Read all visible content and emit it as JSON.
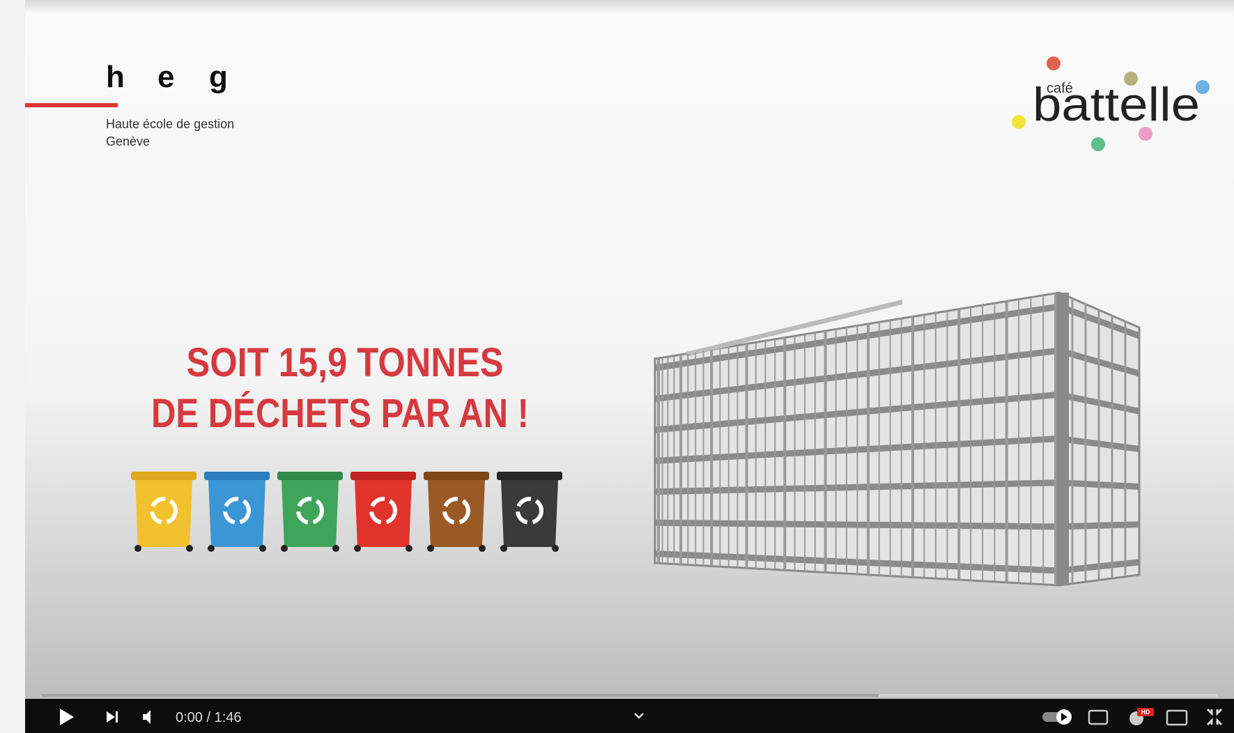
{
  "logo_left": {
    "letters": [
      "h",
      "e",
      "g"
    ],
    "line1": "Haute école de gestion",
    "line2": "Genève"
  },
  "logo_right": {
    "small": "café",
    "name": "battelle"
  },
  "headline": {
    "line1": "SOIT 15,9 TONNES",
    "line2": "DE DÉCHETS PAR AN !"
  },
  "player": {
    "time": "0:00 / 1:46",
    "badge": "HD"
  }
}
